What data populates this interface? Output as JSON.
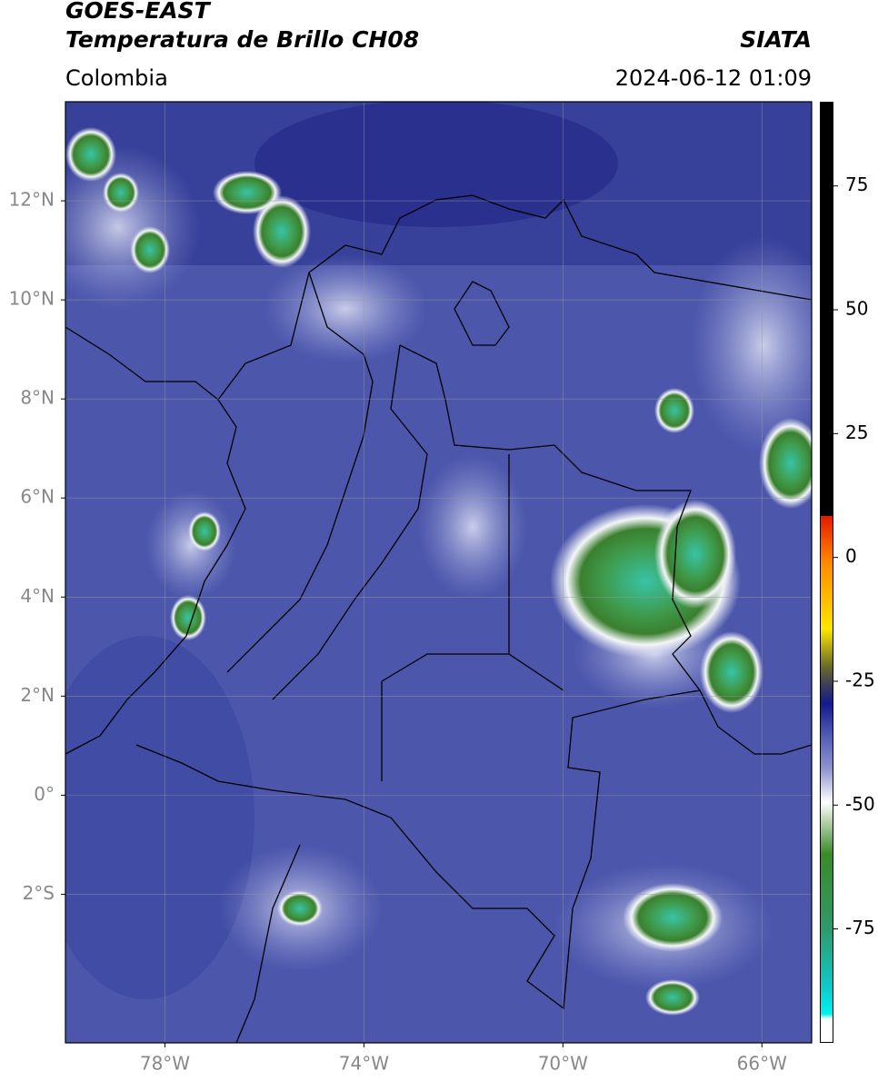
{
  "header": {
    "title": "GOES-EAST",
    "subtitle": "Temperatura de Brillo CH08",
    "source": "SIATA",
    "region": "Colombia",
    "datetime": "2024-06-12 01:09"
  },
  "map": {
    "xlim": [
      -80,
      -65
    ],
    "ylim": [
      -5,
      14
    ],
    "xticks": [
      {
        "value": -78,
        "label": "78°W"
      },
      {
        "value": -74,
        "label": "74°W"
      },
      {
        "value": -70,
        "label": "70°W"
      },
      {
        "value": -66,
        "label": "66°W"
      }
    ],
    "yticks": [
      {
        "value": 12,
        "label": "12°N"
      },
      {
        "value": 10,
        "label": "10°N"
      },
      {
        "value": 8,
        "label": "8°N"
      },
      {
        "value": 6,
        "label": "6°N"
      },
      {
        "value": 4,
        "label": "4°N"
      },
      {
        "value": 2,
        "label": "2°N"
      },
      {
        "value": 0,
        "label": "0°"
      },
      {
        "value": -2,
        "label": "2°S"
      }
    ],
    "grid": true
  },
  "colorbar": {
    "lim": [
      -98,
      92
    ],
    "ticks": [
      75,
      50,
      25,
      0,
      -25,
      -50,
      -75
    ]
  }
}
